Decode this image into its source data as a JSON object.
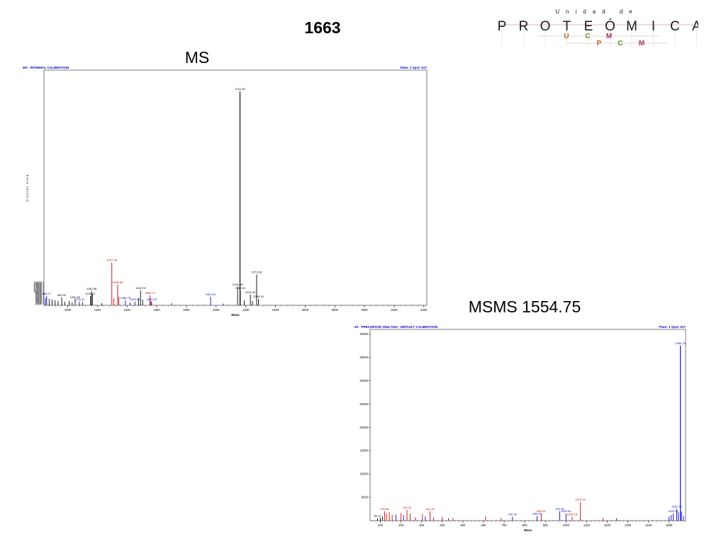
{
  "page": {
    "title": "1663",
    "ms_label": "MS",
    "msms_label": "MSMS 1554.75"
  },
  "logo": {
    "top_word": "Unidad de",
    "letters": [
      "P",
      "R",
      "O",
      "T",
      "E",
      "Ó",
      "M",
      "I",
      "C",
      "A"
    ],
    "row2": [
      "U",
      "C",
      "M"
    ],
    "row3": [
      "P",
      "C",
      "M"
    ],
    "colors": {
      "main": "#1a1a1a",
      "u": "#b5651d",
      "c": "#6b8e23",
      "m": "#b03060",
      "grid": "#c9a9a9"
    }
  },
  "chart_data": [
    {
      "type": "bar",
      "panel_title": "MS - INTERNAL CALIBRATION",
      "panel_info": "Plate: 1 Spot: 617",
      "xlabel": "Mass",
      "ylabel": "Cluster Area",
      "xlim": [
        840,
        3420
      ],
      "ylim": [
        0,
        165000
      ],
      "xticks": [
        1000,
        1200,
        1400,
        1600,
        1800,
        2000,
        2200,
        2400,
        2600,
        2800,
        3000,
        3200,
        3400
      ],
      "yticks": [
        1000,
        2000,
        3000,
        4000,
        5000,
        6000,
        7000,
        8000,
        9000,
        10000,
        11000,
        12000,
        13000,
        14000,
        15000,
        16000
      ],
      "ytick_labels": [
        "1000",
        "2000",
        "3000",
        "4000",
        "5000",
        "6000",
        "7000",
        "8000",
        "9000",
        "10000",
        "11000",
        "12000",
        "13000",
        "14000",
        "15000",
        "16000"
      ],
      "colors": {
        "title": "#0000cc",
        "axis": "#000000",
        "black": "#000000",
        "red": "#cc0000",
        "blue": "#0000cc"
      },
      "peaks": [
        {
          "x": 2161.06,
          "y": 150000,
          "color": "black",
          "label": "2161.06"
        },
        {
          "x": 2273.18,
          "y": 21500,
          "color": "black",
          "label": "2273.18"
        },
        {
          "x": 2145.08,
          "y": 13000,
          "color": "black",
          "label": "2145.08"
        },
        {
          "x": 2163.04,
          "y": 10500,
          "color": "black",
          "label": "2163.04"
        },
        {
          "x": 2231.0,
          "y": 7500,
          "color": "black",
          "label": "2231.00"
        },
        {
          "x": 2285.15,
          "y": 4500,
          "color": "black",
          "label": "2285.15"
        },
        {
          "x": 2190.0,
          "y": 3500,
          "color": "black",
          "label": ""
        },
        {
          "x": 2245.0,
          "y": 3000,
          "color": "black",
          "label": ""
        },
        {
          "x": 1962.91,
          "y": 6000,
          "color": "blue",
          "label": "1962.91"
        },
        {
          "x": 1297.48,
          "y": 30000,
          "color": "red",
          "label": "1297.48"
        },
        {
          "x": 1336.63,
          "y": 14500,
          "color": "red",
          "label": "1336.63"
        },
        {
          "x": 1554.74,
          "y": 7000,
          "color": "red",
          "label": "1554.74"
        },
        {
          "x": 1310.0,
          "y": 5000,
          "color": "red",
          "label": ""
        },
        {
          "x": 1345.0,
          "y": 6000,
          "color": "red",
          "label": ""
        },
        {
          "x": 1560.0,
          "y": 3000,
          "color": "red",
          "label": ""
        },
        {
          "x": 1490.76,
          "y": 10500,
          "color": "black",
          "label": "1490.76"
        },
        {
          "x": 1160.58,
          "y": 10000,
          "color": "black",
          "label": "1160.58"
        },
        {
          "x": 1153.57,
          "y": 6500,
          "color": "black",
          "label": "1153.57"
        },
        {
          "x": 1166.0,
          "y": 8000,
          "color": "black",
          "label": ""
        },
        {
          "x": 1477.0,
          "y": 5000,
          "color": "black",
          "label": ""
        },
        {
          "x": 1505.0,
          "y": 4000,
          "color": "black",
          "label": ""
        },
        {
          "x": 1388.75,
          "y": 3500,
          "color": "blue",
          "label": "1388.75"
        },
        {
          "x": 1453.0,
          "y": 2500,
          "color": "blue",
          "label": "1453.00"
        },
        {
          "x": 1565.0,
          "y": 2500,
          "color": "blue",
          "label": "1565.00"
        },
        {
          "x": 1078.31,
          "y": 2500,
          "color": "blue",
          "label": "1078.31"
        },
        {
          "x": 960.0,
          "y": 5500,
          "color": "black",
          "label": "960.00"
        },
        {
          "x": 1050.0,
          "y": 4000,
          "color": "black",
          "label": "1050.00"
        },
        {
          "x": 858.0,
          "y": 6500,
          "color": "blue",
          "label": "858.07"
        },
        {
          "x": 850.0,
          "y": 5000,
          "color": "blue",
          "label": ""
        },
        {
          "x": 875.0,
          "y": 4500,
          "color": "black",
          "label": ""
        },
        {
          "x": 895.0,
          "y": 4000,
          "color": "black",
          "label": ""
        },
        {
          "x": 915.0,
          "y": 3500,
          "color": "black",
          "label": ""
        },
        {
          "x": 935.0,
          "y": 3000,
          "color": "black",
          "label": ""
        },
        {
          "x": 980.0,
          "y": 2500,
          "color": "black",
          "label": ""
        },
        {
          "x": 1010.0,
          "y": 3000,
          "color": "black",
          "label": ""
        },
        {
          "x": 1030.0,
          "y": 2000,
          "color": "black",
          "label": ""
        },
        {
          "x": 1100.0,
          "y": 2000,
          "color": "black",
          "label": ""
        },
        {
          "x": 1230.0,
          "y": 1500,
          "color": "black",
          "label": ""
        },
        {
          "x": 1420.0,
          "y": 2000,
          "color": "blue",
          "label": ""
        },
        {
          "x": 1700.0,
          "y": 1500,
          "color": "blue",
          "label": ""
        },
        {
          "x": 2050.0,
          "y": 1200,
          "color": "blue",
          "label": ""
        }
      ]
    },
    {
      "type": "bar",
      "panel_title": "MSMS - PRECURSOR 1554.7533 - DEFAULT CALIBRATION",
      "panel_info": "Plate: 1 Spot: 617",
      "xlabel": "Mass",
      "ylabel": "Cluster Area",
      "xlim": [
        50,
        1580
      ],
      "ylim": [
        0,
        41000
      ],
      "xticks": [
        100,
        200,
        300,
        400,
        500,
        600,
        700,
        800,
        900,
        1000,
        1100,
        1200,
        1300,
        1400,
        1500
      ],
      "yticks": [
        5000,
        10000,
        15000,
        20000,
        25000,
        30000,
        35000,
        40000
      ],
      "ytick_labels": [
        "5000",
        "10000",
        "15000",
        "20000",
        "25000",
        "30000",
        "35000",
        "40000"
      ],
      "colors": {
        "title": "#0000cc",
        "axis": "#000000",
        "black": "#000000",
        "red": "#cc0000",
        "blue": "#0000cc"
      },
      "peaks": [
        {
          "x": 1554.75,
          "y": 37500,
          "color": "blue",
          "label": "1554.75"
        },
        {
          "x": 1537.0,
          "y": 2500,
          "color": "blue",
          "label": "1537.00"
        },
        {
          "x": 1520.0,
          "y": 1500,
          "color": "blue",
          "label": "1520.00"
        },
        {
          "x": 1560.0,
          "y": 2000,
          "color": "blue",
          "label": ""
        },
        {
          "x": 1070.0,
          "y": 4000,
          "color": "red",
          "label": "1070.52"
        },
        {
          "x": 1000.0,
          "y": 1500,
          "color": "blue",
          "label": "1000.50"
        },
        {
          "x": 970.0,
          "y": 2000,
          "color": "blue",
          "label": "970.30"
        },
        {
          "x": 880.0,
          "y": 1500,
          "color": "red",
          "label": "880.43"
        },
        {
          "x": 860.0,
          "y": 1000,
          "color": "blue",
          "label": "860.01"
        },
        {
          "x": 1030.0,
          "y": 800,
          "color": "red",
          "label": "1030.18"
        },
        {
          "x": 740.0,
          "y": 800,
          "color": "blue",
          "label": "740.34"
        },
        {
          "x": 610.0,
          "y": 900,
          "color": "red",
          "label": ""
        },
        {
          "x": 686.0,
          "y": 600,
          "color": "red",
          "label": ""
        },
        {
          "x": 1180.0,
          "y": 600,
          "color": "red",
          "label": ""
        },
        {
          "x": 1245.0,
          "y": 500,
          "color": "blue",
          "label": ""
        },
        {
          "x": 86.0,
          "y": 500,
          "color": "black",
          "label": "86.10"
        },
        {
          "x": 120.0,
          "y": 2000,
          "color": "red",
          "label": "120.08"
        },
        {
          "x": 129.0,
          "y": 1500,
          "color": "red",
          "label": ""
        },
        {
          "x": 143.0,
          "y": 1800,
          "color": "red",
          "label": ""
        },
        {
          "x": 157.0,
          "y": 1200,
          "color": "red",
          "label": ""
        },
        {
          "x": 175.0,
          "y": 1300,
          "color": "blue",
          "label": ""
        },
        {
          "x": 200.0,
          "y": 1600,
          "color": "red",
          "label": ""
        },
        {
          "x": 212.0,
          "y": 1200,
          "color": "blue",
          "label": ""
        },
        {
          "x": 229.0,
          "y": 2300,
          "color": "red",
          "label": "229.12"
        },
        {
          "x": 244.0,
          "y": 1500,
          "color": "red",
          "label": ""
        },
        {
          "x": 270.0,
          "y": 700,
          "color": "red",
          "label": ""
        },
        {
          "x": 304.0,
          "y": 1400,
          "color": "red",
          "label": ""
        },
        {
          "x": 318.0,
          "y": 900,
          "color": "blue",
          "label": ""
        },
        {
          "x": 341.0,
          "y": 2000,
          "color": "red",
          "label": "341.19"
        },
        {
          "x": 358.0,
          "y": 700,
          "color": "red",
          "label": ""
        },
        {
          "x": 400.0,
          "y": 800,
          "color": "red",
          "label": ""
        },
        {
          "x": 430.0,
          "y": 500,
          "color": "blue",
          "label": ""
        },
        {
          "x": 452.0,
          "y": 600,
          "color": "red",
          "label": ""
        },
        {
          "x": 100.0,
          "y": 600,
          "color": "black",
          "label": ""
        },
        {
          "x": 110.0,
          "y": 900,
          "color": "black",
          "label": ""
        },
        {
          "x": 1500.0,
          "y": 900,
          "color": "blue",
          "label": ""
        },
        {
          "x": 1510.0,
          "y": 1200,
          "color": "blue",
          "label": ""
        },
        {
          "x": 1545.0,
          "y": 1800,
          "color": "blue",
          "label": ""
        },
        {
          "x": 1570.0,
          "y": 1000,
          "color": "blue",
          "label": ""
        }
      ]
    }
  ]
}
